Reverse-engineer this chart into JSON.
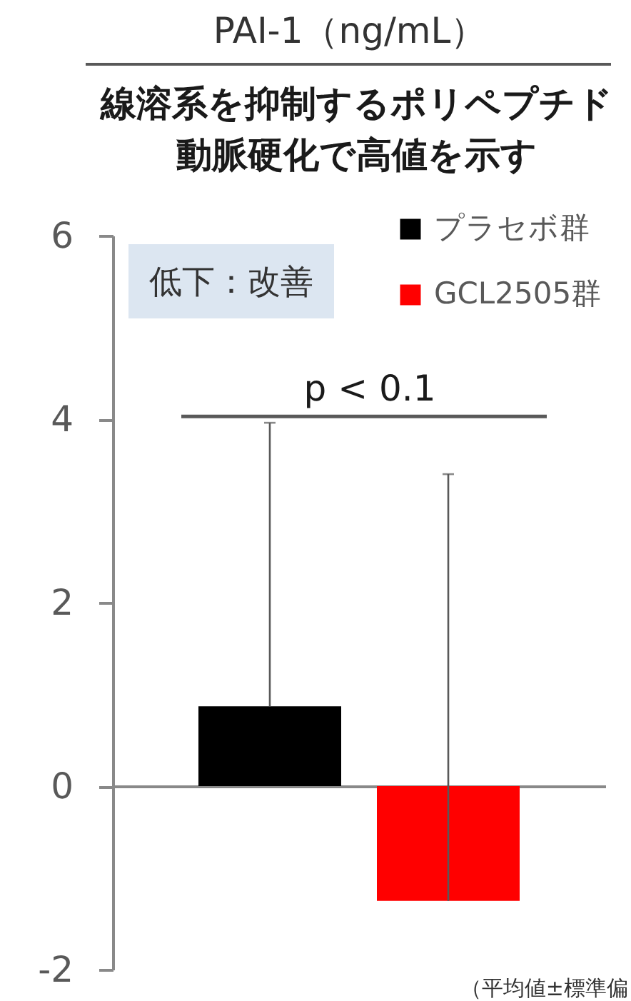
{
  "chart_data": {
    "type": "bar",
    "title": "PAI-1（ng/mL）",
    "subtitle": "線溶系を抑制するポリペプチド動脈硬化で高値を示す",
    "categories": [
      null
    ],
    "series": [
      {
        "name": "プラセボ群",
        "color": "#000000",
        "values": [
          0.87
        ],
        "errors": [
          [
            0.87,
            3.96
          ]
        ]
      },
      {
        "name": "GCL2505群",
        "color": "#ff0000",
        "values": [
          -1.25
        ],
        "errors": [
          [
            -1.25,
            3.4
          ]
        ]
      }
    ],
    "ylim": [
      -2,
      6
    ],
    "yticks": [
      -2,
      0,
      2,
      4,
      6
    ],
    "legend": "top right",
    "tick_labels": "y",
    "ref_lines": [
      {
        "axis": "y",
        "value": 4.03,
        "label": "p < 0.1",
        "color": "#595959"
      }
    ],
    "annotations": [
      "低下：改善",
      "（平均値±標準偏"
    ]
  }
}
